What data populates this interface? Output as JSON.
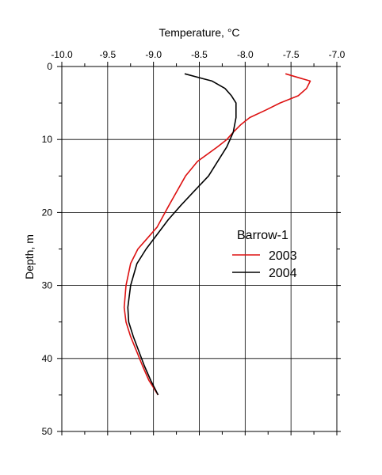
{
  "chart_data": {
    "type": "line",
    "title": "",
    "xlabel": "Temperature, °C",
    "ylabel": "Depth, m",
    "x_axis_position": "top",
    "y_axis_inverted": true,
    "xlim": [
      -10.0,
      -7.0
    ],
    "ylim": [
      0,
      50
    ],
    "x_ticks": [
      "-10.0",
      "-9.5",
      "-9.0",
      "-8.5",
      "-8.0",
      "-7.5",
      "-7.0"
    ],
    "y_ticks": [
      "0",
      "10",
      "20",
      "30",
      "40",
      "50"
    ],
    "grid": true,
    "legend": {
      "title": "Barrow-1",
      "placement": "right-center"
    },
    "series": [
      {
        "name": "2003",
        "color": "#dd1111",
        "points": [
          [
            -7.56,
            1
          ],
          [
            -7.29,
            2
          ],
          [
            -7.33,
            3
          ],
          [
            -7.42,
            4
          ],
          [
            -7.62,
            5
          ],
          [
            -7.78,
            6
          ],
          [
            -7.95,
            7
          ],
          [
            -8.05,
            8
          ],
          [
            -8.13,
            9
          ],
          [
            -8.2,
            10
          ],
          [
            -8.3,
            11
          ],
          [
            -8.52,
            13
          ],
          [
            -8.65,
            15
          ],
          [
            -8.83,
            19
          ],
          [
            -8.96,
            22
          ],
          [
            -9.1,
            24
          ],
          [
            -9.17,
            25
          ],
          [
            -9.25,
            27
          ],
          [
            -9.3,
            30
          ],
          [
            -9.32,
            33
          ],
          [
            -9.3,
            35
          ],
          [
            -9.25,
            37
          ],
          [
            -9.12,
            41
          ],
          [
            -9.05,
            43
          ],
          [
            -8.95,
            45
          ]
        ]
      },
      {
        "name": "2004",
        "color": "#000000",
        "points": [
          [
            -8.66,
            1
          ],
          [
            -8.36,
            2
          ],
          [
            -8.22,
            3
          ],
          [
            -8.15,
            4
          ],
          [
            -8.1,
            5
          ],
          [
            -8.1,
            7
          ],
          [
            -8.13,
            9
          ],
          [
            -8.2,
            11
          ],
          [
            -8.3,
            13
          ],
          [
            -8.4,
            15
          ],
          [
            -8.55,
            17
          ],
          [
            -8.7,
            19
          ],
          [
            -8.84,
            21
          ],
          [
            -8.96,
            23
          ],
          [
            -9.08,
            25
          ],
          [
            -9.18,
            27
          ],
          [
            -9.25,
            30
          ],
          [
            -9.28,
            33
          ],
          [
            -9.27,
            35
          ],
          [
            -9.22,
            37
          ],
          [
            -9.1,
            41
          ],
          [
            -9.03,
            43
          ],
          [
            -8.95,
            45
          ]
        ]
      }
    ]
  }
}
